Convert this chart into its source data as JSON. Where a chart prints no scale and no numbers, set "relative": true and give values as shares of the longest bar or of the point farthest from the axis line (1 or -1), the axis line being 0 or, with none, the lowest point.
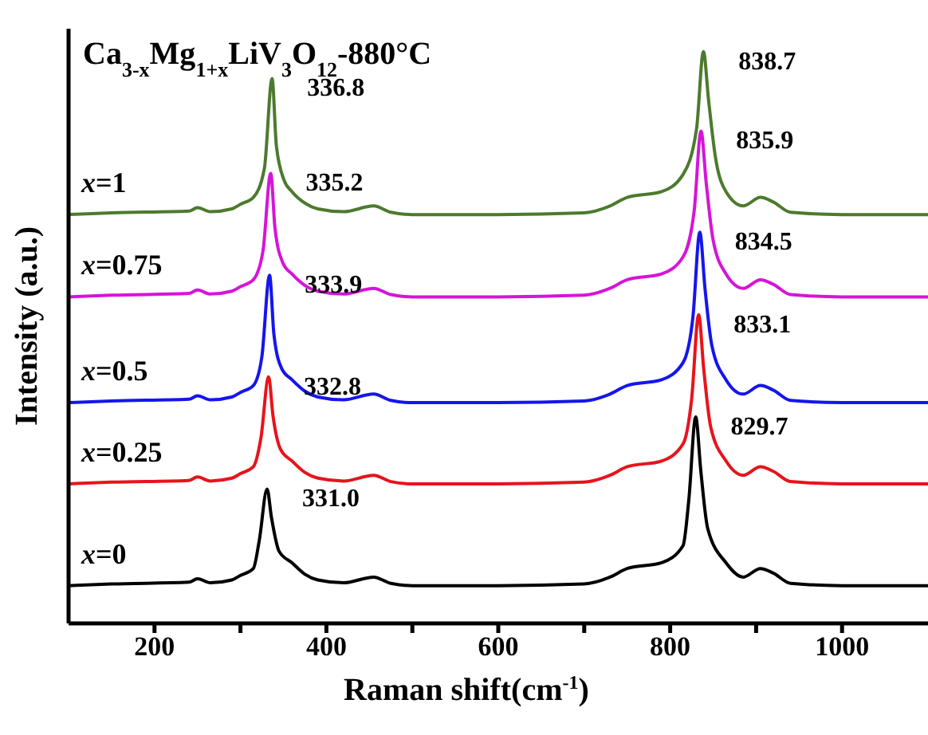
{
  "chart_data": {
    "type": "line",
    "title": "Ca$_{3-x}$Mg$_{1+x}$LiV$_{3}$O$_{12}$-880°C",
    "xlabel": "Raman shift(cm$^{-1}$)",
    "ylabel": "Intensity (a.u.)",
    "relative": true,
    "xlim": [
      100,
      1100
    ],
    "xticks": [
      200,
      {
        "value": 300,
        "label": null
      },
      400,
      {
        "value": 500,
        "label": null
      },
      600,
      {
        "value": 700,
        "label": null
      },
      800,
      {
        "value": 900,
        "label": null
      },
      1000
    ],
    "grid": false,
    "legend": false,
    "marker": "none",
    "line_style": "solid",
    "series": [
      {
        "name": "x=0",
        "color": "#000000",
        "x": [
          100,
          150,
          240,
          250,
          265,
          290,
          300,
          315,
          322,
          331,
          336,
          345,
          360,
          375,
          390,
          420,
          455,
          475,
          500,
          600,
          700,
          730,
          750,
          790,
          815,
          821.7,
          829.7,
          835.7,
          843.7,
          865,
          885,
          905,
          920,
          940,
          1000,
          1100
        ],
        "values": [
          0.066,
          0.069,
          0.072,
          0.078,
          0.071,
          0.076,
          0.084,
          0.096,
          0.146,
          0.235,
          0.186,
          0.126,
          0.106,
          0.086,
          0.076,
          0.071,
          0.081,
          0.07,
          0.066,
          0.066,
          0.069,
          0.081,
          0.096,
          0.106,
          0.136,
          0.216,
          0.361,
          0.266,
          0.166,
          0.106,
          0.081,
          0.096,
          0.088,
          0.07,
          0.066,
          0.066
        ]
      },
      {
        "name": "x=0.25",
        "color": "#e8131b",
        "x": [
          100,
          150,
          240,
          250,
          265,
          290,
          300,
          315,
          323.8,
          332.8,
          337.8,
          346.8,
          360,
          375,
          390,
          420,
          455,
          475,
          500,
          600,
          700,
          730,
          750,
          790,
          815,
          825.1,
          833.1,
          839.1,
          847.1,
          865,
          885,
          905,
          920,
          940,
          1000,
          1100
        ],
        "values": [
          0.244,
          0.247,
          0.25,
          0.256,
          0.249,
          0.254,
          0.262,
          0.274,
          0.324,
          0.431,
          0.364,
          0.304,
          0.284,
          0.264,
          0.254,
          0.249,
          0.259,
          0.248,
          0.244,
          0.244,
          0.247,
          0.259,
          0.274,
          0.284,
          0.314,
          0.394,
          0.54,
          0.444,
          0.344,
          0.284,
          0.259,
          0.274,
          0.266,
          0.248,
          0.244,
          0.244
        ]
      },
      {
        "name": "x=0.5",
        "color": "#1515ee",
        "x": [
          100,
          150,
          240,
          250,
          265,
          290,
          300,
          315,
          324.9,
          333.9,
          338.9,
          347.9,
          360,
          375,
          390,
          420,
          455,
          475,
          500,
          600,
          700,
          730,
          750,
          790,
          815,
          826.5,
          834.5,
          840.5,
          848.5,
          865,
          885,
          905,
          920,
          940,
          1000,
          1100
        ],
        "values": [
          0.386,
          0.389,
          0.392,
          0.398,
          0.391,
          0.396,
          0.404,
          0.416,
          0.466,
          0.609,
          0.506,
          0.446,
          0.426,
          0.406,
          0.396,
          0.391,
          0.401,
          0.39,
          0.386,
          0.386,
          0.389,
          0.401,
          0.416,
          0.426,
          0.456,
          0.536,
          0.684,
          0.586,
          0.486,
          0.426,
          0.401,
          0.416,
          0.408,
          0.39,
          0.386,
          0.386
        ]
      },
      {
        "name": "x=0.75",
        "color": "#d515d8",
        "x": [
          100,
          150,
          240,
          250,
          265,
          290,
          300,
          315,
          326.2,
          335.2,
          340.2,
          349.2,
          360,
          375,
          390,
          420,
          455,
          475,
          500,
          600,
          700,
          730,
          750,
          790,
          815,
          827.9,
          835.9,
          841.9,
          849.9,
          865,
          885,
          905,
          920,
          940,
          1000,
          1100
        ],
        "values": [
          0.571,
          0.574,
          0.577,
          0.583,
          0.576,
          0.581,
          0.589,
          0.601,
          0.651,
          0.787,
          0.691,
          0.631,
          0.611,
          0.591,
          0.581,
          0.576,
          0.586,
          0.575,
          0.571,
          0.571,
          0.574,
          0.586,
          0.601,
          0.611,
          0.641,
          0.721,
          0.861,
          0.771,
          0.671,
          0.611,
          0.586,
          0.601,
          0.593,
          0.575,
          0.571,
          0.571
        ]
      },
      {
        "name": "x=1",
        "color": "#4c7a2e",
        "x": [
          100,
          150,
          240,
          250,
          265,
          290,
          300,
          315,
          327.8,
          336.8,
          341.8,
          350.8,
          360,
          375,
          390,
          420,
          455,
          475,
          500,
          600,
          700,
          730,
          750,
          790,
          815,
          830.7,
          838.7,
          844.7,
          852.7,
          865,
          885,
          905,
          920,
          940,
          1000,
          1100
        ],
        "values": [
          0.715,
          0.718,
          0.721,
          0.727,
          0.72,
          0.725,
          0.733,
          0.745,
          0.795,
          0.953,
          0.835,
          0.775,
          0.755,
          0.735,
          0.725,
          0.72,
          0.73,
          0.719,
          0.715,
          0.715,
          0.718,
          0.73,
          0.745,
          0.755,
          0.785,
          0.865,
          1.0,
          0.915,
          0.815,
          0.755,
          0.73,
          0.745,
          0.737,
          0.719,
          0.715,
          0.715
        ]
      }
    ],
    "annotations": [
      {
        "text": "331.0",
        "x": 331,
        "y": 0.235
      },
      {
        "text": "829.7",
        "x": 829.7,
        "y": 0.361
      },
      {
        "text": "332.8",
        "x": 332.8,
        "y": 0.431
      },
      {
        "text": "833.1",
        "x": 833.1,
        "y": 0.54
      },
      {
        "text": "333.9",
        "x": 333.9,
        "y": 0.609
      },
      {
        "text": "834.5",
        "x": 834.5,
        "y": 0.684
      },
      {
        "text": "335.2",
        "x": 335.2,
        "y": 0.787
      },
      {
        "text": "835.9",
        "x": 835.9,
        "y": 0.861
      },
      {
        "text": "336.8",
        "x": 336.8,
        "y": 0.953
      },
      {
        "text": "838.7",
        "x": 838.7,
        "y": 1.0
      }
    ]
  }
}
